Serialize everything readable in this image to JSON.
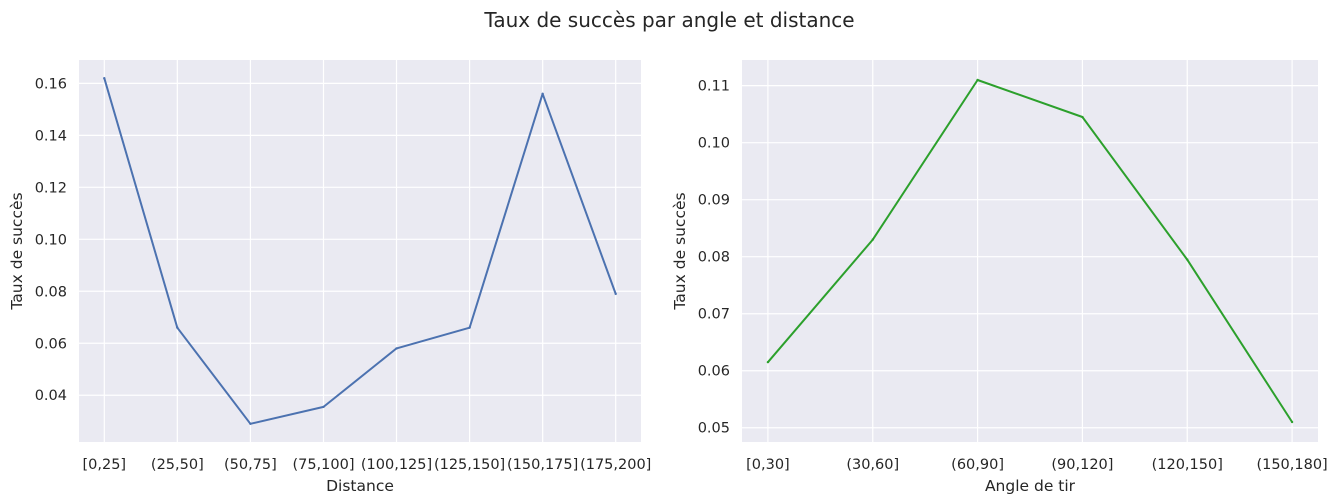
{
  "suptitle": "Taux de succès par angle et distance",
  "chart_data": [
    {
      "type": "line",
      "title": "",
      "xlabel": "Distance",
      "ylabel": "Taux de succès",
      "categories": [
        "[0,25]",
        "(25,50]",
        "(50,75]",
        "(75,100]",
        "(100,125]",
        "(125,150]",
        "(150,175]",
        "(175,200]"
      ],
      "values": [
        0.162,
        0.066,
        0.029,
        0.0355,
        0.058,
        0.066,
        0.156,
        0.079
      ],
      "ylim": [
        0.022,
        0.169
      ],
      "yticks": [
        0.04,
        0.06,
        0.08,
        0.1,
        0.12,
        0.14,
        0.16
      ],
      "ytick_labels": [
        "0.04",
        "0.06",
        "0.08",
        "0.10",
        "0.12",
        "0.14",
        "0.16"
      ],
      "color": "#4c72b0",
      "grid": true
    },
    {
      "type": "line",
      "title": "",
      "xlabel": "Angle de tir",
      "ylabel": "Taux de succès",
      "categories": [
        "[0,30]",
        "(30,60]",
        "(60,90]",
        "(90,120]",
        "(120,150]",
        "(150,180]"
      ],
      "values": [
        0.0615,
        0.083,
        0.111,
        0.1045,
        0.0795,
        0.051
      ],
      "ylim": [
        0.0475,
        0.1145
      ],
      "yticks": [
        0.05,
        0.06,
        0.07,
        0.08,
        0.09,
        0.1,
        0.11
      ],
      "ytick_labels": [
        "0.05",
        "0.06",
        "0.07",
        "0.08",
        "0.09",
        "0.10",
        "0.11"
      ],
      "color": "#2ca02c",
      "grid": true
    }
  ],
  "colors": {
    "axes_background": "#eaeaf2",
    "grid": "#ffffff",
    "text": "#262626"
  }
}
